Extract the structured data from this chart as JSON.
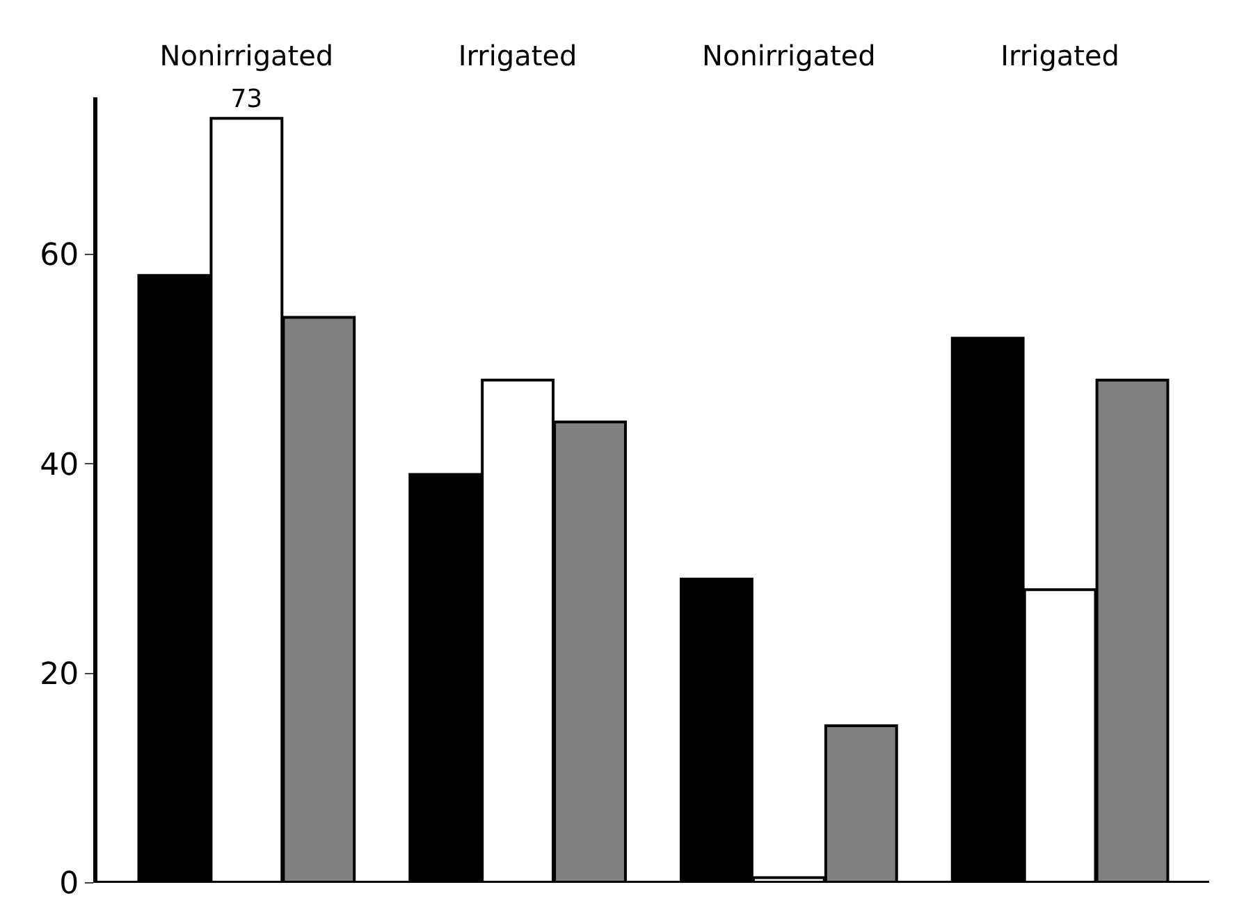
{
  "chart_data": {
    "type": "bar",
    "categories": [
      "Nonirrigated",
      "Irrigated",
      "Nonirrigated",
      "Irrigated"
    ],
    "series": [
      {
        "color": "#000000",
        "values": [
          58,
          39,
          29,
          52
        ]
      },
      {
        "color": "#ffffff",
        "values": [
          73,
          48,
          0.5,
          28
        ],
        "value_labels": [
          "73",
          null,
          null,
          null
        ]
      },
      {
        "color": "#808080",
        "values": [
          54,
          44,
          15,
          48
        ]
      }
    ],
    "ylim": [
      0,
      75
    ],
    "yticks": [
      0,
      20,
      40,
      60
    ],
    "grid": false,
    "legend": false
  }
}
